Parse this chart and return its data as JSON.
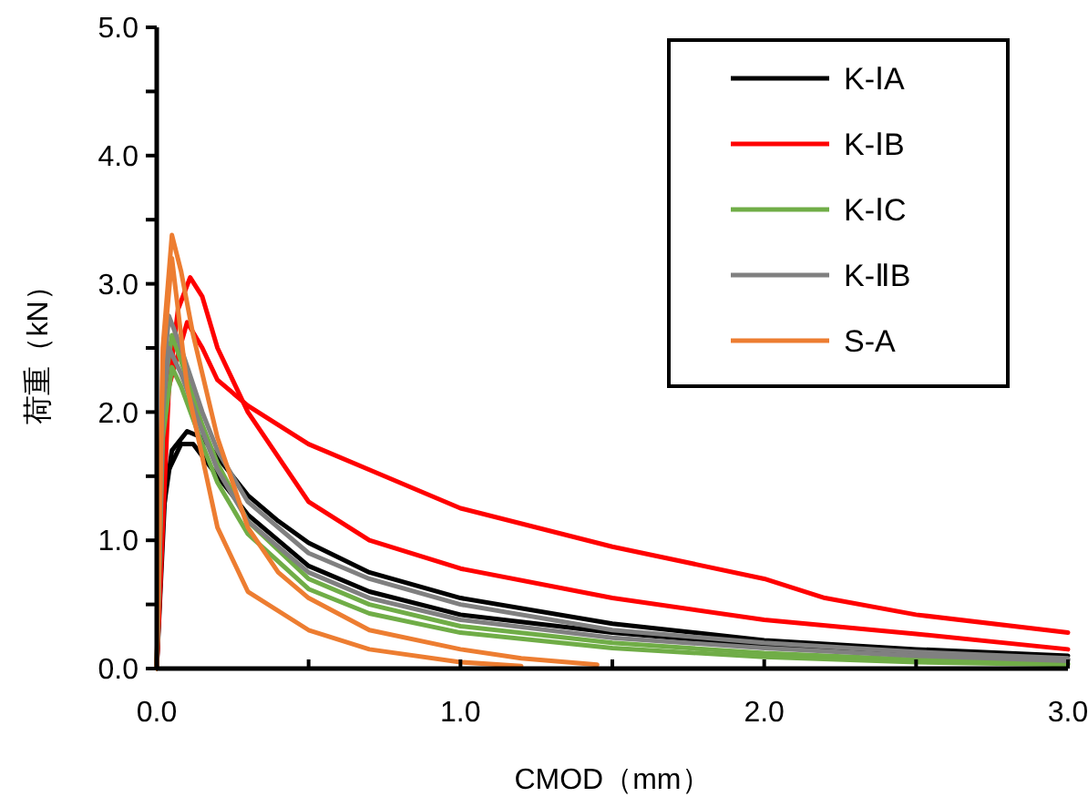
{
  "chart_data": {
    "type": "line",
    "xlabel": "CMOD（mm）",
    "ylabel": "荷重（kN）",
    "xlim": [
      0,
      3.0
    ],
    "ylim": [
      0,
      5.0
    ],
    "xticks": [
      {
        "value": 0,
        "label": "0.0"
      },
      {
        "value": 0.5,
        "label": null
      },
      {
        "value": 1,
        "label": "1.0"
      },
      {
        "value": 1.5,
        "label": null
      },
      {
        "value": 2,
        "label": "2.0"
      },
      {
        "value": 2.5,
        "label": null
      },
      {
        "value": 3,
        "label": "3.0"
      }
    ],
    "yticks": [
      {
        "value": 0,
        "label": "0.0"
      },
      {
        "value": 0.5,
        "label": null
      },
      {
        "value": 1,
        "label": "1.0"
      },
      {
        "value": 1.5,
        "label": null
      },
      {
        "value": 2,
        "label": "2.0"
      },
      {
        "value": 2.5,
        "label": null
      },
      {
        "value": 3,
        "label": "3.0"
      },
      {
        "value": 3.5,
        "label": null
      },
      {
        "value": 4,
        "label": "4.0"
      },
      {
        "value": 4.5,
        "label": null
      },
      {
        "value": 5,
        "label": "5.0"
      }
    ],
    "grid": false,
    "legend": "top right",
    "marker": "none",
    "line_style": "solid",
    "series": [
      {
        "name": "K-ⅠA",
        "color": "#000000",
        "x": [
          0,
          0.02,
          0.05,
          0.1,
          0.15,
          0.2,
          0.3,
          0.4,
          0.5,
          0.7,
          1.0,
          1.5,
          2.0,
          2.5,
          3.0
        ],
        "values": [
          0,
          1.2,
          1.7,
          1.85,
          1.8,
          1.65,
          1.35,
          1.15,
          0.98,
          0.75,
          0.55,
          0.35,
          0.22,
          0.15,
          0.1
        ]
      },
      {
        "color": "#000000",
        "x": [
          0,
          0.03,
          0.08,
          0.12,
          0.2,
          0.3,
          0.5,
          0.7,
          1.0,
          1.5,
          2.0,
          3.0
        ],
        "values": [
          0,
          1.5,
          1.75,
          1.75,
          1.5,
          1.2,
          0.8,
          0.6,
          0.42,
          0.28,
          0.18,
          0.07
        ]
      },
      {
        "name": "K-ⅠB",
        "color": "#ff0000",
        "x": [
          0,
          0.03,
          0.07,
          0.11,
          0.15,
          0.2,
          0.3,
          0.4,
          0.5,
          0.7,
          1.0,
          1.5,
          2.0,
          2.5,
          3.0
        ],
        "values": [
          0,
          2.0,
          2.8,
          3.05,
          2.9,
          2.5,
          2.0,
          1.65,
          1.3,
          1.0,
          0.78,
          0.55,
          0.38,
          0.27,
          0.15
        ]
      },
      {
        "color": "#ff0000",
        "x": [
          0,
          0.04,
          0.1,
          0.15,
          0.2,
          0.3,
          0.5,
          0.7,
          1.0,
          1.5,
          2.0,
          2.2,
          2.5,
          3.0
        ],
        "values": [
          0,
          2.2,
          2.7,
          2.5,
          2.25,
          2.05,
          1.75,
          1.55,
          1.25,
          0.95,
          0.7,
          0.55,
          0.42,
          0.28
        ]
      },
      {
        "name": "K-ⅠC",
        "color": "#70ad47",
        "x": [
          0,
          0.02,
          0.05,
          0.08,
          0.15,
          0.2,
          0.3,
          0.5,
          0.7,
          1.0,
          1.5,
          2.0,
          2.5,
          3.0
        ],
        "values": [
          0,
          2.1,
          2.6,
          2.4,
          1.9,
          1.6,
          1.15,
          0.7,
          0.5,
          0.33,
          0.2,
          0.12,
          0.07,
          0.04
        ]
      },
      {
        "color": "#70ad47",
        "x": [
          0,
          0.02,
          0.05,
          0.08,
          0.15,
          0.2,
          0.3,
          0.5,
          0.7,
          1.0,
          1.5,
          2.0,
          2.5,
          3.0
        ],
        "values": [
          0,
          1.8,
          2.35,
          2.2,
          1.75,
          1.45,
          1.05,
          0.62,
          0.43,
          0.28,
          0.16,
          0.09,
          0.05,
          0.03
        ]
      },
      {
        "name": "K-ⅡB",
        "color": "#808080",
        "x": [
          0,
          0.02,
          0.04,
          0.08,
          0.15,
          0.2,
          0.3,
          0.5,
          0.7,
          1.0,
          1.5,
          2.0,
          2.5,
          3.0
        ],
        "values": [
          0,
          2.2,
          2.75,
          2.5,
          2.0,
          1.7,
          1.3,
          0.9,
          0.7,
          0.5,
          0.3,
          0.2,
          0.13,
          0.08
        ]
      },
      {
        "color": "#808080",
        "x": [
          0,
          0.02,
          0.04,
          0.08,
          0.15,
          0.2,
          0.3,
          0.5,
          0.7,
          1.0,
          1.5,
          2.0,
          2.5,
          3.0
        ],
        "values": [
          0,
          2.0,
          2.5,
          2.3,
          1.85,
          1.55,
          1.15,
          0.75,
          0.55,
          0.38,
          0.24,
          0.16,
          0.1,
          0.06
        ]
      },
      {
        "name": "S-A",
        "color": "#ed7d31",
        "x": [
          0,
          0.02,
          0.05,
          0.08,
          0.12,
          0.2,
          0.3,
          0.4,
          0.5,
          0.7,
          1.0,
          1.2,
          1.45
        ],
        "values": [
          0,
          2.5,
          3.38,
          3.1,
          2.6,
          1.8,
          1.1,
          0.75,
          0.55,
          0.3,
          0.15,
          0.08,
          0.03
        ]
      },
      {
        "color": "#ed7d31",
        "x": [
          0,
          0.02,
          0.05,
          0.1,
          0.2,
          0.3,
          0.5,
          0.7,
          1.0,
          1.2
        ],
        "values": [
          0,
          2.4,
          3.2,
          2.2,
          1.1,
          0.6,
          0.3,
          0.15,
          0.05,
          0.02
        ]
      }
    ]
  }
}
